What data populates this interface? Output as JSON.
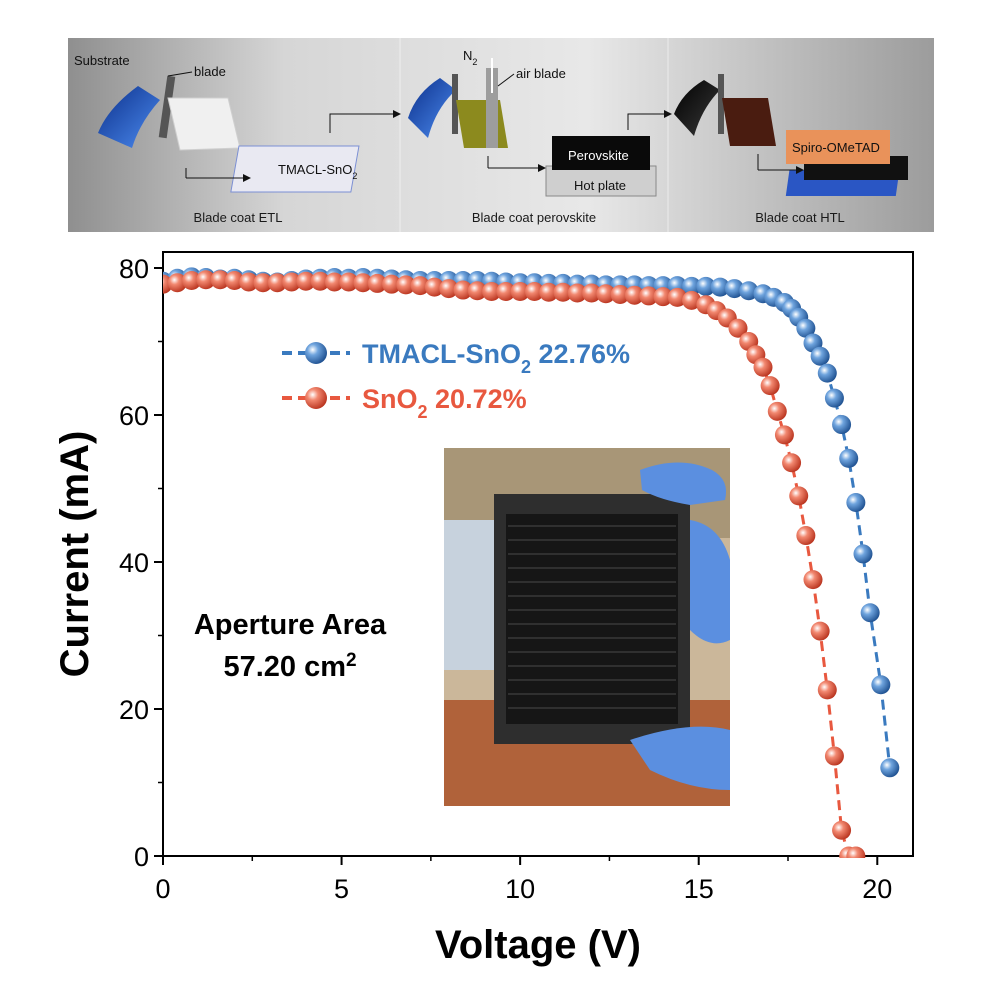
{
  "schematic": {
    "steps": [
      {
        "label": "Blade coat ETL"
      },
      {
        "label": "Blade coat perovskite"
      },
      {
        "label": "Blade coat HTL"
      }
    ],
    "labels": {
      "substrate": "Substrate",
      "blade": "blade",
      "tmacl": "TMACL-SnO",
      "tmacl_sub": "2",
      "n2": "N",
      "n2_sub": "2",
      "air_blade": "air blade",
      "perovskite": "Perovskite",
      "hot_plate": "Hot plate",
      "spiro": "Spiro-OMeTAD"
    },
    "colors": {
      "substrate_blue": "#2a5fc8",
      "perovskite_olive": "#8c8a1e",
      "spiro_orange": "#e9925a",
      "film_black": "#111111"
    }
  },
  "chart_data": {
    "type": "scatter",
    "xlabel": "Voltage (V)",
    "ylabel": "Current (mA)",
    "xlim": [
      0,
      21
    ],
    "ylim": [
      0,
      80
    ],
    "xticks": [
      0,
      5,
      10,
      15,
      20
    ],
    "yticks": [
      0,
      20,
      40,
      60,
      80
    ],
    "grid": false,
    "legend_position": "upper-left",
    "series": [
      {
        "name": "TMACL-SnO",
        "name_sub": "2",
        "name_suffix": " 22.76%",
        "color": "#3a7abf",
        "x": [
          0.0,
          0.4,
          0.8,
          1.2,
          1.6,
          2.0,
          2.4,
          2.8,
          3.2,
          3.6,
          4.0,
          4.4,
          4.8,
          5.2,
          5.6,
          6.0,
          6.4,
          6.8,
          7.2,
          7.6,
          8.0,
          8.4,
          8.8,
          9.2,
          9.6,
          10.0,
          10.4,
          10.8,
          11.2,
          11.6,
          12.0,
          12.4,
          12.8,
          13.2,
          13.6,
          14.0,
          14.4,
          14.8,
          15.2,
          15.6,
          16.0,
          16.4,
          16.8,
          17.1,
          17.4,
          17.6,
          17.8,
          18.0,
          18.2,
          18.4,
          18.6,
          18.8,
          19.0,
          19.2,
          19.4,
          19.6,
          19.8,
          20.1,
          20.35
        ],
        "y": [
          78.2,
          78.6,
          78.8,
          78.7,
          78.5,
          78.6,
          78.4,
          78.2,
          78.1,
          78.3,
          78.5,
          78.6,
          78.7,
          78.6,
          78.7,
          78.6,
          78.5,
          78.4,
          78.3,
          78.3,
          78.3,
          78.3,
          78.3,
          78.2,
          78.1,
          78.0,
          78.0,
          77.9,
          77.9,
          77.8,
          77.8,
          77.7,
          77.7,
          77.7,
          77.6,
          77.6,
          77.6,
          77.5,
          77.5,
          77.4,
          77.2,
          76.9,
          76.5,
          76.0,
          75.3,
          74.5,
          73.3,
          71.8,
          69.8,
          68.0,
          65.7,
          62.3,
          58.7,
          54.1,
          48.1,
          41.1,
          33.1,
          23.3,
          12.0
        ]
      },
      {
        "name": "SnO",
        "name_sub": "2",
        "name_suffix": " 20.72%",
        "color": "#e8583f",
        "x": [
          0.0,
          0.4,
          0.8,
          1.2,
          1.6,
          2.0,
          2.4,
          2.8,
          3.2,
          3.6,
          4.0,
          4.4,
          4.8,
          5.2,
          5.6,
          6.0,
          6.4,
          6.8,
          7.2,
          7.6,
          8.0,
          8.4,
          8.8,
          9.2,
          9.6,
          10.0,
          10.4,
          10.8,
          11.2,
          11.6,
          12.0,
          12.4,
          12.8,
          13.2,
          13.6,
          14.0,
          14.4,
          14.8,
          15.2,
          15.5,
          15.8,
          16.1,
          16.4,
          16.6,
          16.8,
          17.0,
          17.2,
          17.4,
          17.6,
          17.8,
          18.0,
          18.2,
          18.4,
          18.6,
          18.8,
          19.0,
          19.2,
          19.4
        ],
        "y": [
          77.8,
          78.0,
          78.3,
          78.4,
          78.4,
          78.3,
          78.1,
          78.0,
          78.0,
          78.1,
          78.2,
          78.2,
          78.1,
          78.1,
          78.0,
          77.9,
          77.8,
          77.7,
          77.6,
          77.4,
          77.2,
          77.0,
          76.9,
          76.8,
          76.8,
          76.8,
          76.8,
          76.7,
          76.7,
          76.6,
          76.6,
          76.5,
          76.4,
          76.3,
          76.2,
          76.1,
          76.0,
          75.6,
          75.0,
          74.2,
          73.2,
          71.8,
          70.0,
          68.2,
          66.5,
          64.0,
          60.5,
          57.3,
          53.5,
          49.0,
          43.6,
          37.6,
          30.6,
          22.6,
          13.6,
          3.5,
          0.0,
          0.0
        ]
      }
    ],
    "annotations": {
      "area_line1": "Aperture Area",
      "area_line2": "57.20 cm",
      "area_sup": "2"
    },
    "inset_photo": {
      "description_colors": {
        "sky": "#cbb79a",
        "module": "#161616",
        "frame": "#2e2e2e",
        "glove": "#5b8fe0",
        "roof": "#b0623a"
      }
    }
  }
}
